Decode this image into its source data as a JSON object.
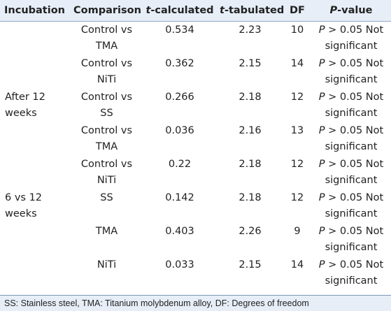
{
  "headers": {
    "incubation": "Incubation",
    "comparison": "Comparison",
    "t_calc_var": "t",
    "t_calc_rest": "-calculated",
    "t_tab_var": "t",
    "t_tab_rest": "-tabulated",
    "df": "DF",
    "pval_var": "P",
    "pval_rest": "-value"
  },
  "rows": [
    {
      "incubation": "",
      "comparison": "Control vs TMA",
      "t_calc": "0.534",
      "t_tab": "2.23",
      "df": "10",
      "p_var": "P",
      "p_rest": " > 0.05 Not significant"
    },
    {
      "incubation": "",
      "comparison": "Control vs NiTi",
      "t_calc": "0.362",
      "t_tab": "2.15",
      "df": "14",
      "p_var": "P",
      "p_rest": " > 0.05 Not significant"
    },
    {
      "incubation": "After 12 weeks",
      "comparison": "Control vs SS",
      "t_calc": "0.266",
      "t_tab": "2.18",
      "df": "12",
      "p_var": "P",
      "p_rest": " > 0.05 Not significant"
    },
    {
      "incubation": "",
      "comparison": "Control vs TMA",
      "t_calc": "0.036",
      "t_tab": "2.16",
      "df": "13",
      "p_var": "P",
      "p_rest": " > 0.05 Not significant"
    },
    {
      "incubation": "",
      "comparison": "Control vs NiTi",
      "t_calc": "0.22",
      "t_tab": "2.18",
      "df": "12",
      "p_var": "P",
      "p_rest": " > 0.05 Not significant"
    },
    {
      "incubation": "6 vs 12 weeks",
      "comparison": "SS",
      "t_calc": "0.142",
      "t_tab": "2.18",
      "df": "12",
      "p_var": "P",
      "p_rest": " > 0.05 Not significant"
    },
    {
      "incubation": "",
      "comparison": "TMA",
      "t_calc": "0.403",
      "t_tab": "2.26",
      "df": "9",
      "p_var": "P",
      "p_rest": " > 0.05 Not significant"
    },
    {
      "incubation": "",
      "comparison": "NiTi",
      "t_calc": "0.033",
      "t_tab": "2.15",
      "df": "14",
      "p_var": "P",
      "p_rest": " > 0.05 Not significant"
    }
  ],
  "footnote": "SS: Stainless steel, TMA: Titanium molybdenum alloy, DF: Degrees of freedom"
}
